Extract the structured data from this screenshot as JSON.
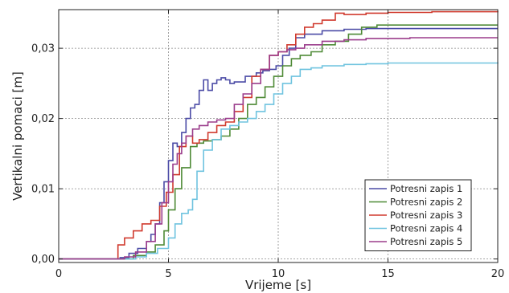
{
  "chart_data": {
    "type": "line",
    "title": "",
    "xlabel": "Vrijeme [s]",
    "ylabel": "Vertikalni pomaci [m]",
    "xlim": [
      0,
      20
    ],
    "ylim": [
      -0.0005,
      0.0355
    ],
    "xticks": [
      0,
      5,
      10,
      15,
      20
    ],
    "xtick_labels": [
      "0",
      "5",
      "10",
      "15",
      "20"
    ],
    "yticks": [
      0.0,
      0.01,
      0.02,
      0.03
    ],
    "ytick_labels": [
      "0,00",
      "0,01",
      "0,02",
      "0,03"
    ],
    "grid": true,
    "legend_position": "lower-right",
    "series": [
      {
        "name": "Potresni zapis 1",
        "color": "#4b4ba6",
        "x": [
          0,
          2.4,
          2.8,
          3.2,
          3.6,
          4.0,
          4.2,
          4.4,
          4.6,
          4.8,
          5.0,
          5.2,
          5.4,
          5.6,
          5.8,
          6.0,
          6.2,
          6.4,
          6.6,
          6.8,
          7.0,
          7.2,
          7.4,
          7.6,
          7.8,
          8.0,
          8.5,
          9.0,
          9.3,
          9.6,
          9.9,
          10.2,
          10.5,
          10.8,
          11.2,
          12.0,
          13.0,
          14.0,
          15.0,
          17.0,
          20.0
        ],
        "y": [
          0,
          0,
          0.0002,
          0.0008,
          0.0015,
          0.0025,
          0.0035,
          0.005,
          0.008,
          0.011,
          0.014,
          0.0165,
          0.016,
          0.018,
          0.02,
          0.0215,
          0.022,
          0.024,
          0.0255,
          0.024,
          0.025,
          0.0255,
          0.0258,
          0.0255,
          0.025,
          0.0252,
          0.026,
          0.0265,
          0.0268,
          0.027,
          0.0275,
          0.029,
          0.03,
          0.0315,
          0.032,
          0.0325,
          0.0327,
          0.0328,
          0.0328,
          0.0328,
          0.0328
        ]
      },
      {
        "name": "Potresni zapis 2",
        "color": "#4e8a36",
        "x": [
          0,
          2.8,
          3.4,
          4.0,
          4.4,
          4.8,
          5.0,
          5.3,
          5.6,
          6.0,
          6.3,
          6.6,
          7.0,
          7.4,
          7.8,
          8.2,
          8.6,
          9.0,
          9.4,
          9.8,
          10.2,
          10.6,
          11.0,
          11.5,
          12.0,
          12.6,
          13.2,
          13.8,
          14.5,
          16.0,
          18.0,
          20.0
        ],
        "y": [
          0,
          0,
          0.0005,
          0.001,
          0.002,
          0.004,
          0.007,
          0.01,
          0.013,
          0.016,
          0.0165,
          0.0168,
          0.017,
          0.0175,
          0.0185,
          0.02,
          0.022,
          0.023,
          0.0245,
          0.026,
          0.0275,
          0.0285,
          0.029,
          0.0295,
          0.0305,
          0.031,
          0.032,
          0.033,
          0.0333,
          0.0333,
          0.0333,
          0.0333
        ]
      },
      {
        "name": "Potresni zapis 3",
        "color": "#d03a2e",
        "x": [
          0,
          2.6,
          2.7,
          3.0,
          3.4,
          3.8,
          4.2,
          4.6,
          4.9,
          5.2,
          5.5,
          5.8,
          6.1,
          6.4,
          6.8,
          7.2,
          7.6,
          8.0,
          8.4,
          8.8,
          9.2,
          9.6,
          10.0,
          10.4,
          10.8,
          11.2,
          11.6,
          12.0,
          12.6,
          13.0,
          14.0,
          15.0,
          17.0,
          20.0
        ],
        "y": [
          0,
          0,
          0.002,
          0.003,
          0.004,
          0.005,
          0.0055,
          0.0075,
          0.0095,
          0.012,
          0.016,
          0.0175,
          0.0165,
          0.017,
          0.018,
          0.019,
          0.0195,
          0.021,
          0.023,
          0.026,
          0.027,
          0.029,
          0.0295,
          0.0305,
          0.032,
          0.033,
          0.0335,
          0.034,
          0.035,
          0.0348,
          0.035,
          0.0351,
          0.0352,
          0.0353
        ]
      },
      {
        "name": "Potresni zapis 4",
        "color": "#6fc3df",
        "x": [
          0,
          3.0,
          3.5,
          4.0,
          4.5,
          5.0,
          5.3,
          5.6,
          5.9,
          6.1,
          6.3,
          6.6,
          7.0,
          7.4,
          7.8,
          8.2,
          8.6,
          9.0,
          9.4,
          9.8,
          10.2,
          10.6,
          11.0,
          11.5,
          12.0,
          13.0,
          14.0,
          15.0,
          17.0,
          20.0
        ],
        "y": [
          0,
          0,
          0.0003,
          0.0008,
          0.0015,
          0.003,
          0.005,
          0.0065,
          0.007,
          0.0085,
          0.0125,
          0.0155,
          0.017,
          0.0185,
          0.019,
          0.0195,
          0.02,
          0.021,
          0.022,
          0.0235,
          0.025,
          0.026,
          0.027,
          0.0272,
          0.0275,
          0.0277,
          0.0278,
          0.0279,
          0.0279,
          0.028
        ]
      },
      {
        "name": "Potresni zapis 5",
        "color": "#9b3d8c",
        "x": [
          0,
          2.5,
          3.0,
          3.5,
          4.0,
          4.4,
          4.7,
          5.0,
          5.2,
          5.4,
          5.6,
          5.8,
          6.1,
          6.4,
          6.8,
          7.2,
          7.6,
          8.0,
          8.4,
          8.8,
          9.2,
          9.6,
          10.0,
          10.4,
          10.8,
          11.2,
          12.0,
          13.0,
          14.0,
          16.0,
          20.0
        ],
        "y": [
          0,
          0,
          0.0003,
          0.001,
          0.0025,
          0.005,
          0.008,
          0.011,
          0.0135,
          0.015,
          0.0165,
          0.0175,
          0.0185,
          0.019,
          0.0195,
          0.0198,
          0.02,
          0.022,
          0.0235,
          0.025,
          0.027,
          0.029,
          0.0295,
          0.0298,
          0.03,
          0.0305,
          0.031,
          0.0312,
          0.0314,
          0.0315,
          0.0315
        ]
      }
    ]
  }
}
